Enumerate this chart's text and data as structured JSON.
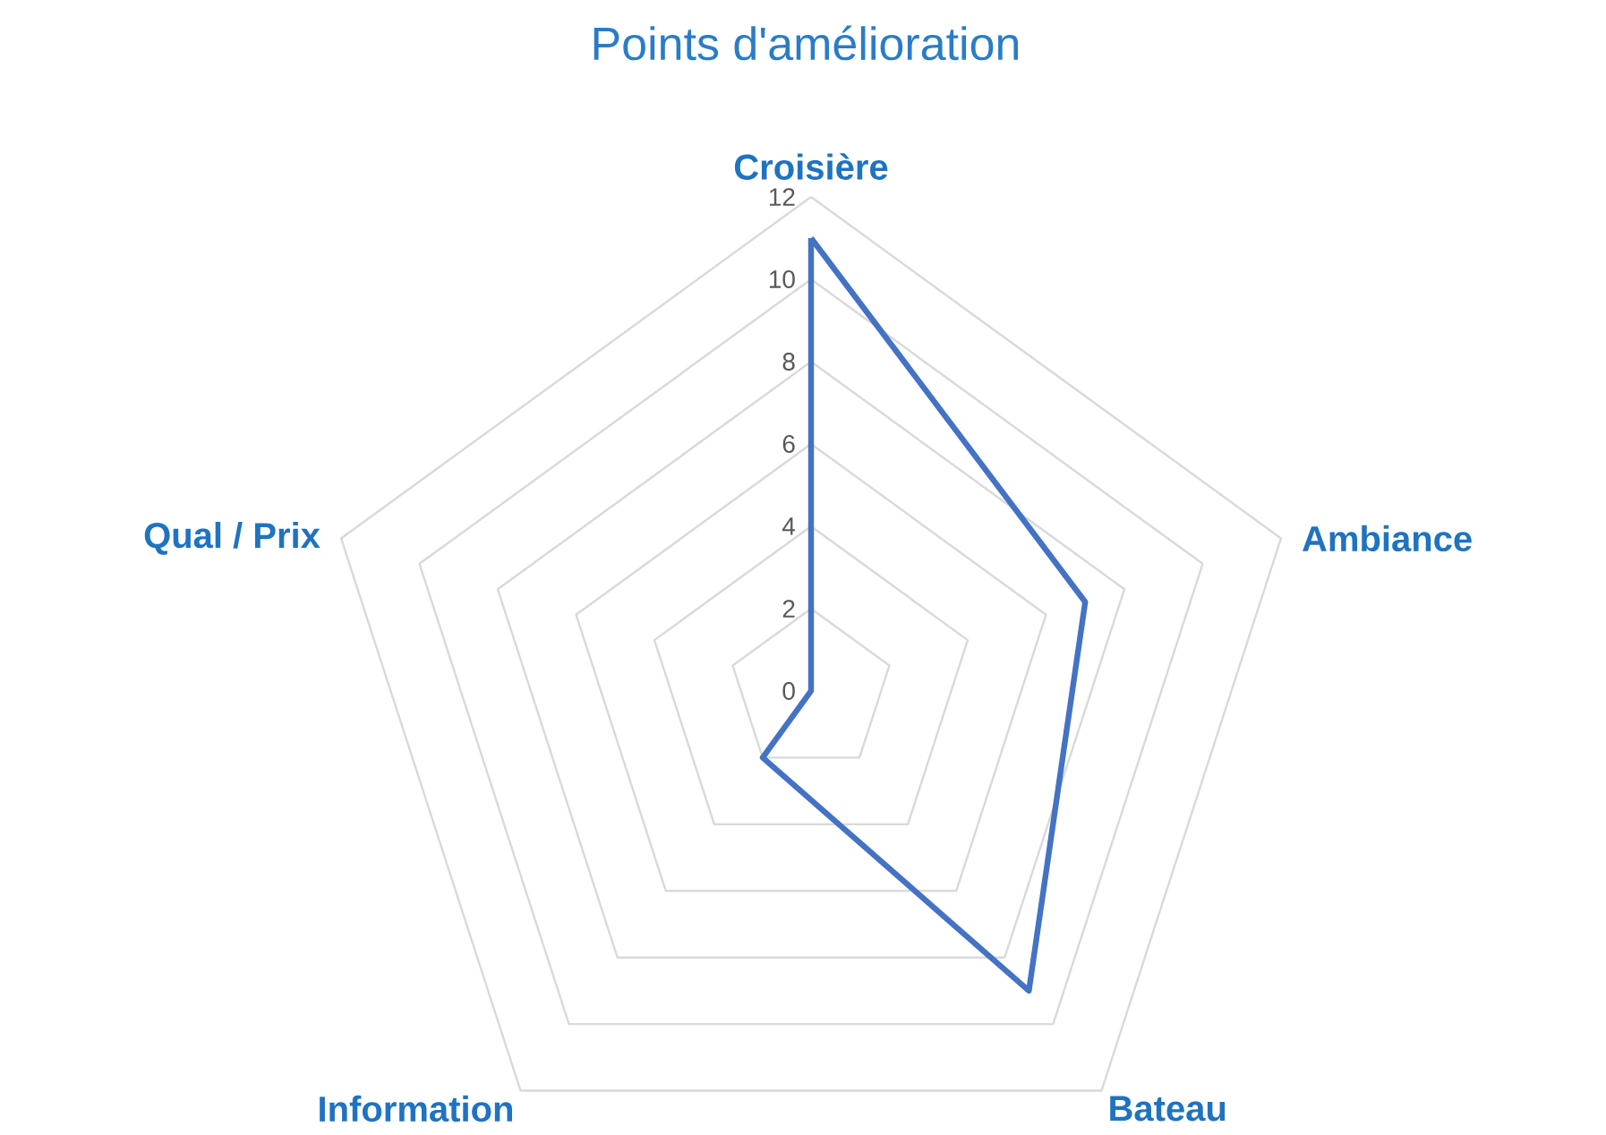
{
  "chart_data": {
    "type": "radar",
    "title": "Points d'amélioration",
    "categories": [
      "Croisière",
      "Ambiance",
      "Bateau",
      "Information",
      "Qual / Prix"
    ],
    "series": [
      {
        "color": "#4472c4",
        "values": [
          11,
          7,
          9,
          2,
          0
        ]
      }
    ],
    "ylim": [
      0,
      12
    ],
    "yticks": [
      0,
      2,
      4,
      6,
      8,
      10,
      12
    ],
    "grid": true
  }
}
